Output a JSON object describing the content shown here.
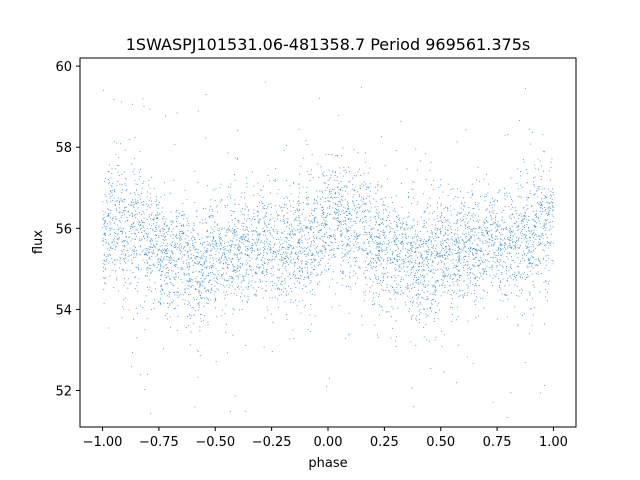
{
  "chart_data": {
    "type": "scatter",
    "title": "1SWASPJ101531.06-481358.7 Period 969561.375s",
    "xlabel": "phase",
    "ylabel": "flux",
    "xlim": [
      -1.1,
      1.1
    ],
    "ylim": [
      51.1,
      60.2
    ],
    "xticks": [
      -1.0,
      -0.75,
      -0.5,
      -0.25,
      0.0,
      0.25,
      0.5,
      0.75,
      1.0
    ],
    "xtick_labels": [
      "−1.00",
      "−0.75",
      "−0.50",
      "−0.25",
      "0.00",
      "0.25",
      "0.50",
      "0.75",
      "1.00"
    ],
    "yticks": [
      52,
      54,
      56,
      58,
      60
    ],
    "ytick_labels": [
      "52",
      "54",
      "56",
      "58",
      "60"
    ],
    "grid": false,
    "marker_color": "#1f77b4",
    "series": [
      {
        "phase_profile": [
          [
            -1.0,
            55.6,
            0.75
          ],
          [
            -0.96,
            56.3,
            0.8
          ],
          [
            -0.9,
            55.9,
            0.75
          ],
          [
            -0.85,
            56.1,
            0.8
          ],
          [
            -0.8,
            55.6,
            0.7
          ],
          [
            -0.75,
            55.5,
            0.7
          ],
          [
            -0.7,
            55.2,
            0.7
          ],
          [
            -0.65,
            55.4,
            0.7
          ],
          [
            -0.6,
            55.0,
            0.75
          ],
          [
            -0.55,
            55.1,
            0.75
          ],
          [
            -0.5,
            55.4,
            0.75
          ],
          [
            -0.45,
            55.3,
            0.75
          ],
          [
            -0.4,
            55.6,
            0.7
          ],
          [
            -0.35,
            55.5,
            0.7
          ],
          [
            -0.3,
            55.8,
            0.7
          ],
          [
            -0.25,
            55.6,
            0.7
          ],
          [
            -0.2,
            55.4,
            0.75
          ],
          [
            -0.15,
            55.7,
            0.8
          ],
          [
            -0.1,
            55.5,
            0.75
          ],
          [
            -0.05,
            55.8,
            0.75
          ],
          [
            0.0,
            56.2,
            0.8
          ],
          [
            0.04,
            56.3,
            0.8
          ],
          [
            0.1,
            55.9,
            0.75
          ],
          [
            0.15,
            56.1,
            0.8
          ],
          [
            0.2,
            55.6,
            0.7
          ],
          [
            0.25,
            55.5,
            0.7
          ],
          [
            0.3,
            55.2,
            0.7
          ],
          [
            0.35,
            55.4,
            0.7
          ],
          [
            0.4,
            55.0,
            0.75
          ],
          [
            0.45,
            55.1,
            0.75
          ],
          [
            0.5,
            55.4,
            0.75
          ],
          [
            0.55,
            55.3,
            0.75
          ],
          [
            0.6,
            55.6,
            0.7
          ],
          [
            0.65,
            55.5,
            0.7
          ],
          [
            0.7,
            55.8,
            0.7
          ],
          [
            0.75,
            55.6,
            0.7
          ],
          [
            0.8,
            55.4,
            0.75
          ],
          [
            0.85,
            55.7,
            0.8
          ],
          [
            0.9,
            55.5,
            0.75
          ],
          [
            0.95,
            56.2,
            0.8
          ],
          [
            1.0,
            56.0,
            0.75
          ]
        ]
      }
    ]
  }
}
